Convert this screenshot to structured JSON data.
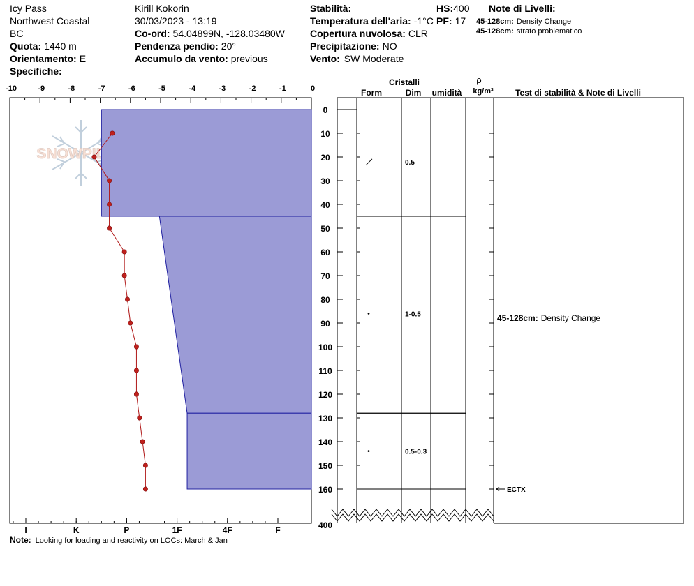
{
  "header": {
    "location": "Icy Pass",
    "region": "Northwest Coastal",
    "province": "BC",
    "elevation_label": "Quota:",
    "elevation_value": "1440 m",
    "aspect_label": "Orientamento:",
    "aspect_value": "E",
    "specifics_label": "Specifiche:",
    "observer": "Kirill Kokorin",
    "datetime": "30/03/2023 - 13:19",
    "coord_label": "Co-ord:",
    "coord_value": "54.04899N, -128.03480W",
    "slope_label": "Pendenza pendio:",
    "slope_value": "20°",
    "wind_load_label": "Accumulo da vento:",
    "wind_load_value": "previous",
    "stability_label": "Stabilità:",
    "air_temp_label": "Temperatura dell'aria:",
    "air_temp_value": "-1°C",
    "cloud_label": "Copertura nuvolosa:",
    "cloud_value": "CLR",
    "precip_label": "Precipitazione:",
    "precip_value": "NO",
    "wind_label": "Vento:",
    "wind_value": "SW Moderate",
    "hs_label": "HS:",
    "hs_value": "400",
    "pf_label": "PF:",
    "pf_value": "17",
    "layer_notes_title": "Note di Livelli:",
    "layer_notes": [
      {
        "range": "45-128cm:",
        "text": "Density Change"
      },
      {
        "range": "45-128cm:",
        "text": "strato problematico"
      }
    ]
  },
  "columns": {
    "crystals": "Cristalli",
    "form": "Form",
    "size": "Dim",
    "moisture": "umidità",
    "rho": "ρ",
    "density_unit": "kg/m³",
    "tests": "Test di stabilità & Note di Livelli"
  },
  "watermark": "SNOWPILOT",
  "note": {
    "label": "Note:",
    "text": "Looking for loading and reactivity on LOCs: March & Jan"
  },
  "chart_data": {
    "type": "snow_profile",
    "temp_axis": {
      "min": -10,
      "max": 0,
      "ticks": [
        "-10",
        "-9",
        "-8",
        "-7",
        "-6",
        "-5",
        "-4",
        "-3",
        "-2",
        "-1",
        "0"
      ]
    },
    "hardness_axis": {
      "ticks": [
        "I",
        "K",
        "P",
        "1F",
        "4F",
        "F"
      ]
    },
    "depth_axis": {
      "ticks": [
        "0",
        "10",
        "20",
        "30",
        "40",
        "50",
        "60",
        "70",
        "80",
        "90",
        "100",
        "110",
        "120",
        "130",
        "140",
        "150",
        "160"
      ],
      "bottom_label": "400"
    },
    "layers": [
      {
        "top": 0,
        "bottom": 45,
        "hardness_top": 1.5,
        "hardness_bottom": 1.5,
        "grain": "slash",
        "size": "0.5",
        "grain_depth": 22
      },
      {
        "top": 45,
        "bottom": 128,
        "hardness_top": 2.65,
        "hardness_bottom": 3.2,
        "grain": "dot",
        "size": "1-0.5",
        "grain_depth": 86
      },
      {
        "top": 128,
        "bottom": 160,
        "hardness_top": 3.2,
        "hardness_bottom": 3.2,
        "grain": "dot",
        "size": "0.5-0.3",
        "grain_depth": 144
      }
    ],
    "temperature_profile": [
      {
        "depth": 10,
        "temp": -6.6
      },
      {
        "depth": 20,
        "temp": -7.2
      },
      {
        "depth": 30,
        "temp": -6.7
      },
      {
        "depth": 40,
        "temp": -6.7
      },
      {
        "depth": 50,
        "temp": -6.7
      },
      {
        "depth": 60,
        "temp": -6.2
      },
      {
        "depth": 70,
        "temp": -6.2
      },
      {
        "depth": 80,
        "temp": -6.1
      },
      {
        "depth": 90,
        "temp": -6.0
      },
      {
        "depth": 100,
        "temp": -5.8
      },
      {
        "depth": 110,
        "temp": -5.8
      },
      {
        "depth": 120,
        "temp": -5.8
      },
      {
        "depth": 130,
        "temp": -5.7
      },
      {
        "depth": 140,
        "temp": -5.6
      },
      {
        "depth": 150,
        "temp": -5.5
      },
      {
        "depth": 160,
        "temp": -5.5
      }
    ],
    "layer_note": {
      "depth": 88,
      "range": "45-128cm:",
      "text": "Density Change"
    },
    "test": {
      "depth": 160,
      "label": "ECTX"
    }
  }
}
